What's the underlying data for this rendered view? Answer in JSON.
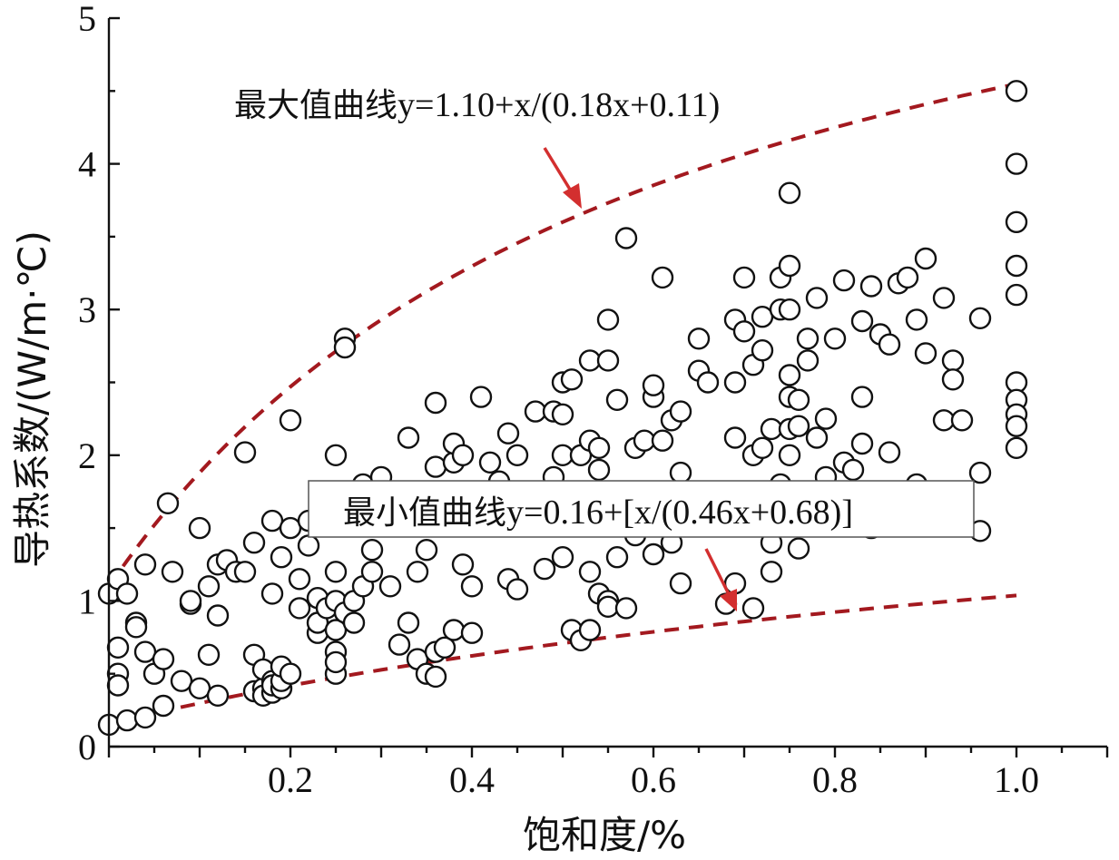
{
  "chart_data": {
    "type": "scatter",
    "xlabel": "饱和度/%",
    "ylabel": "导热系数/(W/m·℃)",
    "xlim": [
      0,
      1.1
    ],
    "ylim": [
      0,
      5
    ],
    "x_ticks": [
      "0.2",
      "0.4",
      "0.6",
      "0.8",
      "1.0"
    ],
    "y_ticks": [
      "0",
      "1",
      "2",
      "3",
      "4",
      "5"
    ],
    "grid": false,
    "curves": [
      {
        "key": "max",
        "label_prefix": "最大值曲线",
        "label_equation": "y=1.10+x/(0.18x+0.11)",
        "a": 1.1,
        "b": 0.18,
        "c": 0.11
      },
      {
        "key": "min",
        "label_prefix": "最小值曲线",
        "label_equation": "y=0.16+[x/(0.46x+0.68)]",
        "a": 0.16,
        "b": 0.46,
        "c": 0.68
      }
    ],
    "points": [
      [
        0.0,
        1.05
      ],
      [
        0.01,
        1.15
      ],
      [
        0.02,
        1.05
      ],
      [
        0.01,
        0.68
      ],
      [
        0.01,
        0.5
      ],
      [
        0.01,
        0.42
      ],
      [
        0.0,
        0.15
      ],
      [
        0.02,
        0.18
      ],
      [
        0.03,
        0.85
      ],
      [
        0.03,
        0.82
      ],
      [
        0.04,
        1.25
      ],
      [
        0.04,
        0.65
      ],
      [
        0.05,
        0.5
      ],
      [
        0.06,
        0.6
      ],
      [
        0.06,
        0.28
      ],
      [
        0.04,
        0.2
      ],
      [
        0.065,
        1.67
      ],
      [
        0.07,
        1.2
      ],
      [
        0.08,
        0.45
      ],
      [
        0.09,
        0.98
      ],
      [
        0.09,
        1.0
      ],
      [
        0.1,
        1.5
      ],
      [
        0.1,
        0.4
      ],
      [
        0.11,
        1.1
      ],
      [
        0.11,
        0.63
      ],
      [
        0.12,
        1.25
      ],
      [
        0.12,
        0.35
      ],
      [
        0.12,
        0.9
      ],
      [
        0.13,
        1.28
      ],
      [
        0.14,
        1.2
      ],
      [
        0.15,
        1.2
      ],
      [
        0.15,
        2.02
      ],
      [
        0.16,
        1.4
      ],
      [
        0.16,
        0.63
      ],
      [
        0.16,
        0.38
      ],
      [
        0.17,
        0.4
      ],
      [
        0.17,
        0.53
      ],
      [
        0.17,
        0.35
      ],
      [
        0.18,
        0.37
      ],
      [
        0.18,
        0.45
      ],
      [
        0.18,
        0.42
      ],
      [
        0.19,
        0.4
      ],
      [
        0.19,
        0.45
      ],
      [
        0.19,
        0.55
      ],
      [
        0.2,
        0.5
      ],
      [
        0.18,
        1.55
      ],
      [
        0.18,
        1.05
      ],
      [
        0.19,
        1.3
      ],
      [
        0.2,
        1.5
      ],
      [
        0.2,
        2.24
      ],
      [
        0.21,
        1.15
      ],
      [
        0.21,
        0.95
      ],
      [
        0.22,
        1.55
      ],
      [
        0.22,
        1.38
      ],
      [
        0.23,
        0.78
      ],
      [
        0.23,
        1.02
      ],
      [
        0.23,
        0.85
      ],
      [
        0.24,
        0.95
      ],
      [
        0.25,
        1.2
      ],
      [
        0.25,
        1.0
      ],
      [
        0.25,
        0.8
      ],
      [
        0.25,
        0.65
      ],
      [
        0.25,
        0.5
      ],
      [
        0.25,
        0.58
      ],
      [
        0.25,
        2.0
      ],
      [
        0.26,
        2.8
      ],
      [
        0.26,
        2.74
      ],
      [
        0.26,
        0.92
      ],
      [
        0.27,
        0.85
      ],
      [
        0.27,
        1.0
      ],
      [
        0.28,
        1.8
      ],
      [
        0.28,
        1.1
      ],
      [
        0.29,
        1.35
      ],
      [
        0.29,
        1.2
      ],
      [
        0.3,
        1.85
      ],
      [
        0.31,
        1.1
      ],
      [
        0.32,
        0.7
      ],
      [
        0.33,
        2.12
      ],
      [
        0.33,
        0.85
      ],
      [
        0.34,
        0.6
      ],
      [
        0.34,
        1.2
      ],
      [
        0.35,
        1.35
      ],
      [
        0.35,
        0.5
      ],
      [
        0.36,
        0.48
      ],
      [
        0.36,
        0.65
      ],
      [
        0.36,
        1.92
      ],
      [
        0.36,
        2.36
      ],
      [
        0.37,
        0.68
      ],
      [
        0.37,
        1.6
      ],
      [
        0.38,
        0.8
      ],
      [
        0.38,
        1.95
      ],
      [
        0.38,
        2.08
      ],
      [
        0.39,
        1.25
      ],
      [
        0.39,
        2.0
      ],
      [
        0.4,
        1.1
      ],
      [
        0.4,
        0.78
      ],
      [
        0.41,
        2.4
      ],
      [
        0.42,
        1.95
      ],
      [
        0.43,
        1.82
      ],
      [
        0.44,
        1.15
      ],
      [
        0.44,
        2.15
      ],
      [
        0.45,
        2.0
      ],
      [
        0.45,
        1.08
      ],
      [
        0.47,
        2.3
      ],
      [
        0.48,
        1.22
      ],
      [
        0.49,
        2.3
      ],
      [
        0.49,
        1.85
      ],
      [
        0.5,
        2.5
      ],
      [
        0.5,
        2.28
      ],
      [
        0.5,
        1.3
      ],
      [
        0.5,
        2.0
      ],
      [
        0.51,
        0.8
      ],
      [
        0.51,
        2.52
      ],
      [
        0.52,
        0.73
      ],
      [
        0.52,
        2.0
      ],
      [
        0.53,
        1.2
      ],
      [
        0.53,
        2.65
      ],
      [
        0.53,
        2.1
      ],
      [
        0.53,
        0.8
      ],
      [
        0.54,
        2.05
      ],
      [
        0.54,
        1.9
      ],
      [
        0.54,
        1.05
      ],
      [
        0.55,
        1.0
      ],
      [
        0.55,
        2.93
      ],
      [
        0.55,
        2.65
      ],
      [
        0.55,
        0.96
      ],
      [
        0.56,
        1.3
      ],
      [
        0.56,
        2.38
      ],
      [
        0.57,
        3.49
      ],
      [
        0.57,
        0.95
      ],
      [
        0.58,
        2.05
      ],
      [
        0.58,
        1.45
      ],
      [
        0.59,
        2.1
      ],
      [
        0.6,
        2.4
      ],
      [
        0.6,
        2.48
      ],
      [
        0.6,
        1.32
      ],
      [
        0.61,
        2.1
      ],
      [
        0.61,
        3.22
      ],
      [
        0.62,
        1.4
      ],
      [
        0.62,
        2.24
      ],
      [
        0.63,
        1.12
      ],
      [
        0.63,
        1.88
      ],
      [
        0.63,
        2.3
      ],
      [
        0.65,
        2.58
      ],
      [
        0.65,
        2.8
      ],
      [
        0.66,
        2.5
      ],
      [
        0.68,
        0.98
      ],
      [
        0.69,
        1.12
      ],
      [
        0.69,
        2.5
      ],
      [
        0.69,
        2.93
      ],
      [
        0.69,
        2.12
      ],
      [
        0.7,
        2.85
      ],
      [
        0.7,
        3.22
      ],
      [
        0.71,
        2.0
      ],
      [
        0.71,
        2.62
      ],
      [
        0.71,
        0.95
      ],
      [
        0.72,
        2.72
      ],
      [
        0.72,
        2.95
      ],
      [
        0.72,
        2.05
      ],
      [
        0.73,
        2.18
      ],
      [
        0.73,
        1.2
      ],
      [
        0.73,
        1.4
      ],
      [
        0.74,
        3.22
      ],
      [
        0.74,
        3.0
      ],
      [
        0.74,
        1.8
      ],
      [
        0.75,
        3.8
      ],
      [
        0.75,
        3.3
      ],
      [
        0.75,
        3.0
      ],
      [
        0.75,
        2.55
      ],
      [
        0.75,
        2.4
      ],
      [
        0.75,
        2.18
      ],
      [
        0.75,
        2.0
      ],
      [
        0.76,
        2.38
      ],
      [
        0.76,
        2.2
      ],
      [
        0.76,
        1.36
      ],
      [
        0.77,
        2.65
      ],
      [
        0.77,
        2.8
      ],
      [
        0.78,
        2.12
      ],
      [
        0.78,
        3.08
      ],
      [
        0.79,
        1.85
      ],
      [
        0.79,
        2.25
      ],
      [
        0.8,
        2.8
      ],
      [
        0.81,
        1.95
      ],
      [
        0.81,
        3.2
      ],
      [
        0.82,
        1.9
      ],
      [
        0.83,
        2.92
      ],
      [
        0.83,
        2.4
      ],
      [
        0.83,
        2.08
      ],
      [
        0.84,
        1.5
      ],
      [
        0.84,
        3.16
      ],
      [
        0.85,
        2.83
      ],
      [
        0.86,
        2.76
      ],
      [
        0.86,
        2.02
      ],
      [
        0.87,
        3.18
      ],
      [
        0.88,
        3.22
      ],
      [
        0.89,
        1.8
      ],
      [
        0.89,
        2.93
      ],
      [
        0.9,
        3.35
      ],
      [
        0.9,
        2.7
      ],
      [
        0.92,
        3.08
      ],
      [
        0.92,
        2.24
      ],
      [
        0.93,
        2.65
      ],
      [
        0.93,
        2.52
      ],
      [
        0.94,
        2.24
      ],
      [
        0.96,
        2.94
      ],
      [
        0.96,
        1.88
      ],
      [
        0.96,
        1.48
      ],
      [
        1.0,
        4.5
      ],
      [
        1.0,
        4.0
      ],
      [
        1.0,
        3.6
      ],
      [
        1.0,
        3.3
      ],
      [
        1.0,
        3.1
      ],
      [
        1.0,
        2.5
      ],
      [
        1.0,
        2.38
      ],
      [
        1.0,
        2.28
      ],
      [
        1.0,
        2.2
      ],
      [
        1.0,
        2.05
      ]
    ]
  }
}
